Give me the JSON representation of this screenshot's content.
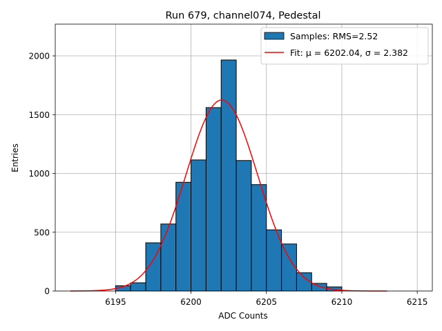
{
  "chart_data": {
    "type": "bar",
    "title": "Run 679, channel074, Pedestal",
    "xlabel": "ADC Counts",
    "ylabel": "Entries",
    "xlim": [
      6191,
      6216
    ],
    "ylim": [
      0,
      2270
    ],
    "xticks": [
      6195,
      6200,
      6205,
      6210,
      6215
    ],
    "yticks": [
      0,
      500,
      1000,
      1500,
      2000
    ],
    "grid": true,
    "bin_width": 1,
    "bin_left_edges": [
      6195,
      6196,
      6197,
      6198,
      6199,
      6200,
      6201,
      6202,
      6203,
      6204,
      6205,
      6206,
      6207,
      6208,
      6209
    ],
    "counts": [
      45,
      70,
      410,
      570,
      925,
      1115,
      1560,
      1965,
      1110,
      905,
      520,
      400,
      155,
      65,
      35
    ],
    "fit": {
      "mu": 6202.04,
      "sigma": 2.382,
      "amplitude": 1625,
      "x_range": [
        6192,
        6213
      ]
    },
    "legend": {
      "position": "top-right",
      "entries": [
        {
          "name": "histogram",
          "label": "Samples: RMS=2.52"
        },
        {
          "name": "fit",
          "label": "Fit: μ = 6202.04, σ = 2.382"
        }
      ]
    },
    "colors": {
      "bar_fill": "#1f77b4",
      "bar_edge": "#000000",
      "fit_line": "#ff0000",
      "grid": "#b0b0b0"
    }
  }
}
